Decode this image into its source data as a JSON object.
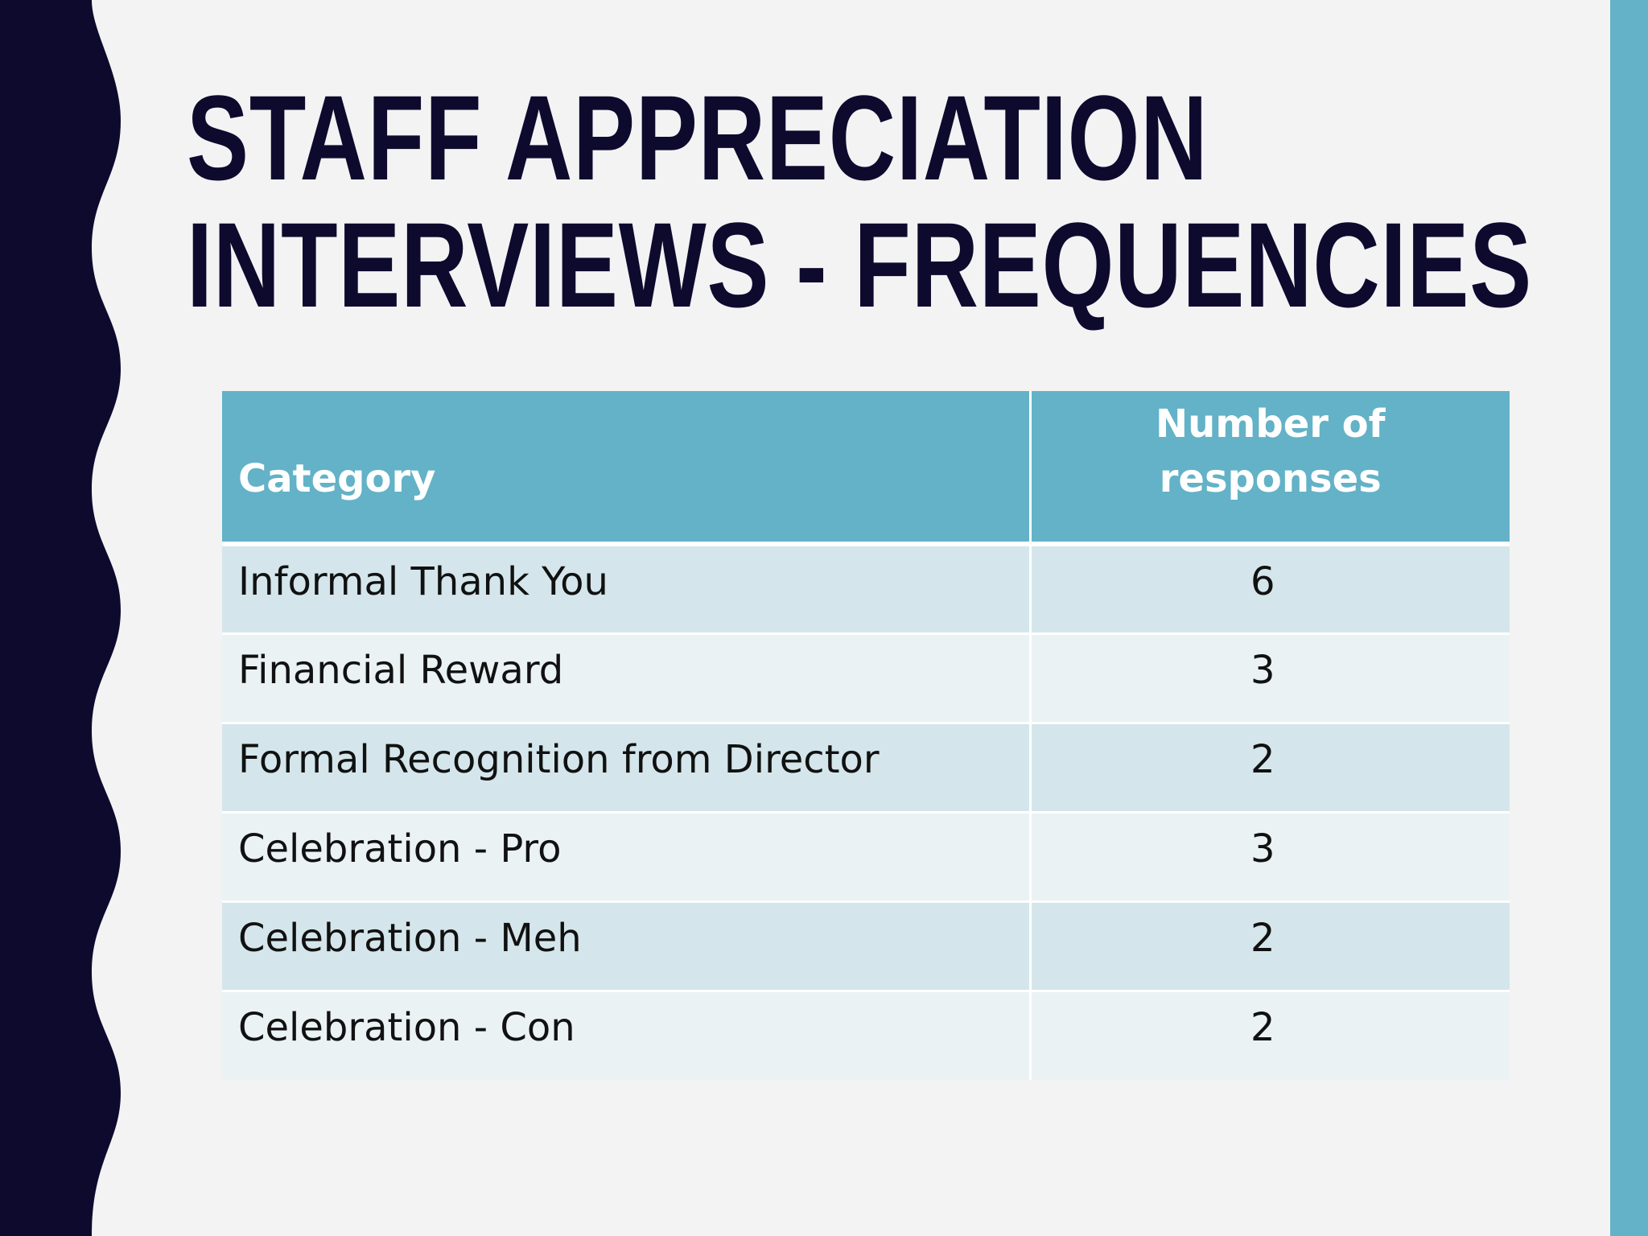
{
  "colors": {
    "background": "#f3f3f4",
    "left_bar": "#0d0a2e",
    "right_bar": "#63b2c7",
    "title": "#0e0a2e",
    "header_fill": "#63b2c7",
    "row_odd": "#d4e6eb",
    "row_even": "#eaf2f4"
  },
  "slide": {
    "title_line1": "STAFF APPRECIATION",
    "title_line2": "INTERVIEWS - FREQUENCIES"
  },
  "table": {
    "headers": {
      "category": "Category",
      "count_line1": "Number of",
      "count_line2": "responses"
    },
    "rows": [
      {
        "category": "Informal Thank You",
        "count": "6"
      },
      {
        "category": "Financial Reward",
        "count": "3"
      },
      {
        "category": "Formal Recognition from Director",
        "count": "2"
      },
      {
        "category": "Celebration - Pro",
        "count": "3"
      },
      {
        "category": "Celebration - Meh",
        "count": "2"
      },
      {
        "category": "Celebration - Con",
        "count": "2"
      }
    ]
  }
}
